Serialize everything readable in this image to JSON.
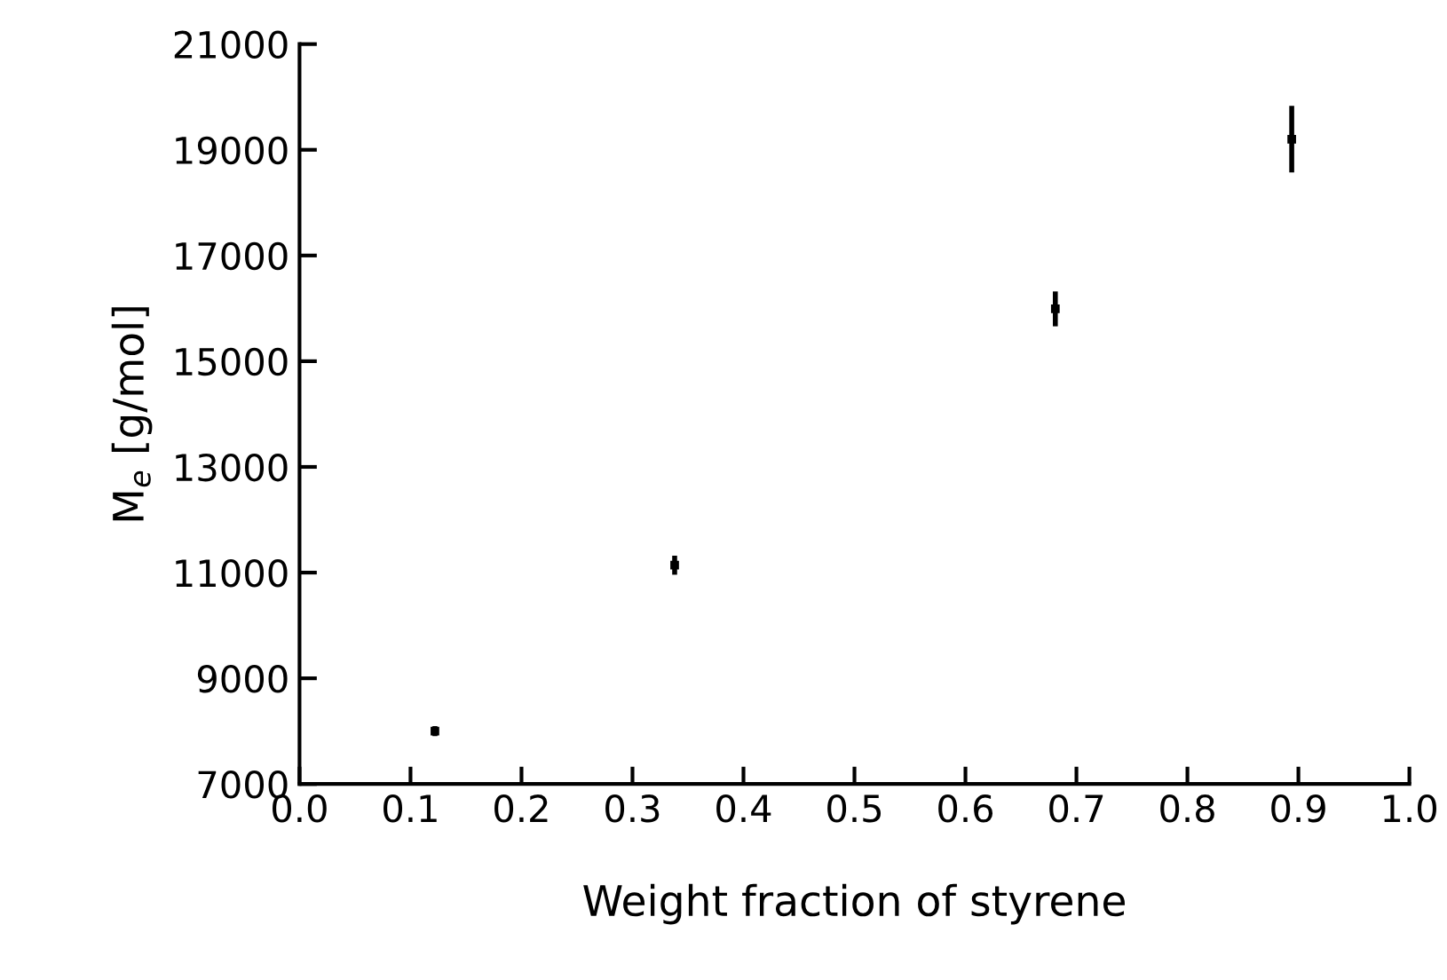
{
  "chart_data": {
    "type": "scatter",
    "xlabel": "Weight fraction of styrene",
    "ylabel": "M$_{e}$ [g/mol]",
    "x": [
      0.122,
      0.338,
      0.681,
      0.894
    ],
    "values": [
      8000,
      11140,
      15990,
      19200
    ],
    "errors": [
      95,
      180,
      330,
      630
    ],
    "color": "#000000",
    "marker": "square",
    "grid": false,
    "xlim": [
      0.0,
      1.0
    ],
    "xticks": [
      {
        "value": 0.0,
        "label": "0.0"
      },
      {
        "value": 0.1,
        "label": "0.1"
      },
      {
        "value": 0.2,
        "label": "0.2"
      },
      {
        "value": 0.3,
        "label": "0.3"
      },
      {
        "value": 0.4,
        "label": "0.4"
      },
      {
        "value": 0.5,
        "label": "0.5"
      },
      {
        "value": 0.6,
        "label": "0.6"
      },
      {
        "value": 0.7,
        "label": "0.7"
      },
      {
        "value": 0.8,
        "label": "0.8"
      },
      {
        "value": 0.9,
        "label": "0.9"
      },
      {
        "value": 1.0,
        "label": "1.0"
      }
    ],
    "ylim": [
      7000,
      21000
    ],
    "yticks": [
      7000,
      9000,
      11000,
      13000,
      15000,
      17000,
      19000,
      21000
    ]
  }
}
